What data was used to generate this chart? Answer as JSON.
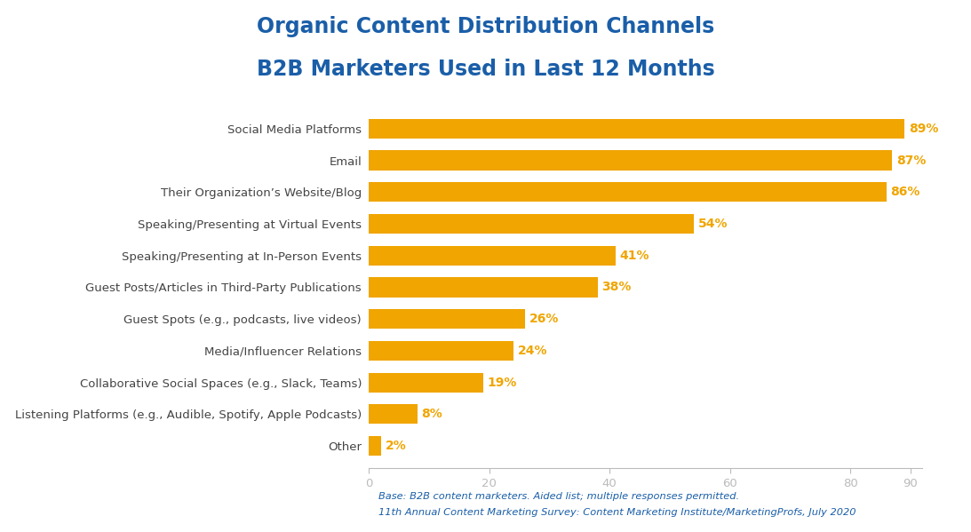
{
  "title_line1": "Organic Content Distribution Channels",
  "title_line2": "B2B Marketers Used in Last 12 Months",
  "categories": [
    "Other",
    "Listening Platforms (e.g., Audible, Spotify, Apple Podcasts)",
    "Collaborative Social Spaces (e.g., Slack, Teams)",
    "Media/Influencer Relations",
    "Guest Spots (e.g., podcasts, live videos)",
    "Guest Posts/Articles in Third-Party Publications",
    "Speaking/Presenting at In-Person Events",
    "Speaking/Presenting at Virtual Events",
    "Their Organization’s Website/Blog",
    "Email",
    "Social Media Platforms"
  ],
  "values": [
    2,
    8,
    19,
    24,
    26,
    38,
    41,
    54,
    86,
    87,
    89
  ],
  "bar_color": "#F0A500",
  "label_color": "#F0A500",
  "title_color": "#1A5EA8",
  "axis_label_color": "#444444",
  "footnote_color": "#1A5EA8",
  "background_color": "#FFFFFF",
  "footnote_line1": "Base: B2B content marketers. Aided list; multiple responses permitted.",
  "footnote_line2": "11th Annual Content Marketing Survey: Content Marketing Institute/MarketingProfs, July 2020",
  "xlim_max": 92,
  "xticks": [
    0,
    20,
    40,
    60,
    80,
    90
  ],
  "bar_height": 0.62,
  "title_fontsize": 17,
  "category_fontsize": 9.5,
  "label_fontsize": 10,
  "tick_fontsize": 9.5,
  "footnote_fontsize": 8.2
}
